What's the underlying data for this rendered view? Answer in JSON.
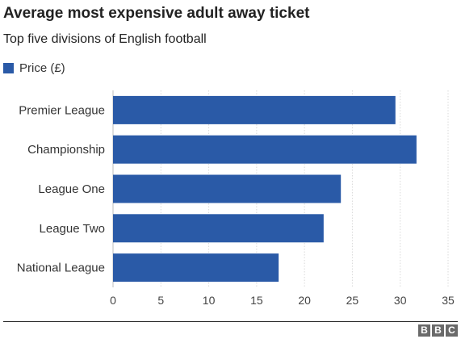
{
  "chart_data": {
    "type": "bar",
    "orientation": "horizontal",
    "title": "Average most expensive adult away ticket",
    "subtitle": "Top five divisions of English football",
    "categories": [
      "Premier League",
      "Championship",
      "League One",
      "League Two",
      "National League"
    ],
    "series": [
      {
        "name": "Price (£)",
        "color": "#2a5aa7",
        "values": [
          29.5,
          31.7,
          23.8,
          22.0,
          17.3
        ]
      }
    ],
    "xlim": [
      0,
      35
    ],
    "xticks": [
      0,
      5,
      10,
      15,
      20,
      25,
      30,
      35
    ],
    "xlabel": "",
    "ylabel": "",
    "grid": "vertical",
    "legend": "top-left"
  },
  "source_logo": "BBC",
  "colors": {
    "bar": "#2a5aa7",
    "grid": "#d9d9d9",
    "text": "#222222"
  }
}
